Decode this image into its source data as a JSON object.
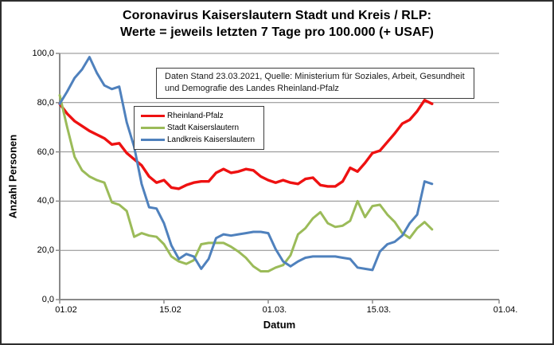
{
  "title": {
    "line1": "Coronavirus Kaiserslautern Stadt und Kreis / RLP:",
    "line2": "Werte = jeweils letzten 7 Tage pro 100.000 (+ USAF)"
  },
  "annotation": {
    "line1": "Daten Stand 23.03.2021, Quelle: Ministerium für Soziales, Arbeit, Gesundheit",
    "line2": "und Demografie des Landes Rheinland-Pfalz"
  },
  "axes": {
    "y_label": "Anzahl Personen",
    "x_label": "Datum",
    "y_tick_values": [
      100,
      80,
      60,
      40,
      20,
      0
    ],
    "y_tick_labels": [
      "100,0",
      "80,0",
      "60,0",
      "40,0",
      "20,0",
      "0,0"
    ],
    "x_tick_days": [
      0,
      14,
      28,
      42,
      59
    ],
    "x_tick_labels": [
      "01.02",
      "15.02",
      "01.03.",
      "15.03.",
      "01.04."
    ]
  },
  "chart_data": {
    "type": "line",
    "title": "Coronavirus Kaiserslautern Stadt und Kreis / RLP: Werte = jeweils letzten 7 Tage pro 100.000 (+ USAF)",
    "xlabel": "Datum",
    "ylabel": "Anzahl Personen",
    "ylim": [
      0,
      100
    ],
    "x_axis_range_days": [
      0,
      59
    ],
    "x_start_date": "01.02.2021",
    "x_end_of_data": "23.03.2021",
    "grid": true,
    "legend_position": "inside-upper-left",
    "gridline_color": "#8a8a8a",
    "series": [
      {
        "id": "rheinland-pfalz",
        "name": "Rheinland-Pfalz",
        "color": "#ee1111",
        "width": 3.4,
        "values": [
          79.5,
          75.5,
          72.5,
          70.5,
          68.5,
          67,
          65.5,
          63,
          63.5,
          59.5,
          57,
          54.5,
          50,
          47.5,
          48.5,
          45.5,
          45,
          46.5,
          47.5,
          48,
          48,
          51.5,
          53,
          51.5,
          52,
          53,
          52.5,
          50,
          48.5,
          47.5,
          48.5,
          47.5,
          47,
          49,
          49.5,
          46.5,
          46,
          46,
          48,
          53.5,
          52,
          55.5,
          59.5,
          60.5,
          64,
          67.5,
          71.5,
          73,
          76.5,
          81,
          79.5
        ]
      },
      {
        "id": "stadt-kaiserslautern",
        "name": "Stadt Kaiserslautern",
        "color": "#9bbb59",
        "width": 3,
        "values": [
          83,
          70,
          58,
          52.5,
          50,
          48.5,
          47.5,
          39.5,
          38.5,
          36,
          25.5,
          27,
          26,
          25.5,
          22.5,
          17.5,
          15.5,
          14.5,
          16,
          22.5,
          23,
          23,
          23,
          21.5,
          19.5,
          17,
          13.5,
          11.5,
          11.5,
          13,
          14,
          18,
          26.5,
          29,
          33,
          35.5,
          31,
          29.5,
          30,
          32,
          40,
          33.5,
          38,
          38.5,
          34.5,
          31.5,
          27,
          25,
          29,
          31.5,
          28.5
        ]
      },
      {
        "id": "landkreis-kaiserslautern",
        "name": "Landkreis Kaiserslautern",
        "color": "#4f81bd",
        "width": 3,
        "values": [
          79.5,
          84.5,
          90,
          93.5,
          98.5,
          92,
          87,
          85.5,
          86.5,
          72,
          62,
          47,
          37.5,
          37,
          31,
          22,
          16.5,
          18.5,
          17.5,
          12.5,
          16.5,
          25,
          26.5,
          26,
          26.5,
          27,
          27.5,
          27.5,
          27,
          20.5,
          15.5,
          13.5,
          15.5,
          17,
          17.5,
          17.5,
          17.5,
          17.5,
          17,
          16.5,
          13,
          12.5,
          12,
          19.5,
          22.5,
          23.5,
          26,
          31,
          34.5,
          48,
          47
        ]
      }
    ]
  }
}
